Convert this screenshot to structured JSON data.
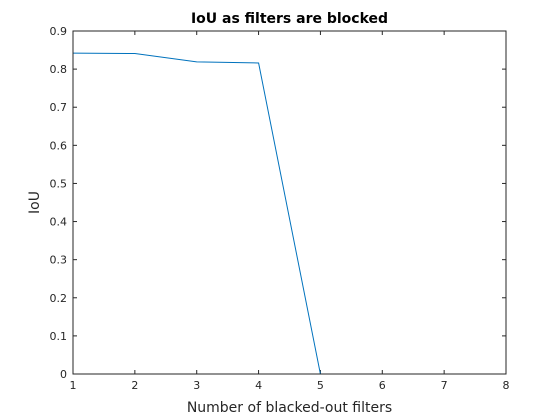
{
  "chart_data": {
    "type": "line",
    "title": "IoU as filters are blocked",
    "xlabel": "Number of blacked-out filters",
    "ylabel": "IoU",
    "xlim": [
      1,
      8
    ],
    "ylim": [
      0,
      0.9
    ],
    "xticks": [
      1,
      2,
      3,
      4,
      5,
      6,
      7,
      8
    ],
    "yticks": [
      0,
      0.1,
      0.2,
      0.3,
      0.4,
      0.5,
      0.6,
      0.7,
      0.8,
      0.9
    ],
    "grid": false,
    "box": true,
    "series": [
      {
        "color": "#0072bd",
        "x": [
          1,
          2,
          3,
          4,
          5,
          6,
          7,
          8
        ],
        "y": [
          0.842,
          0.841,
          0.819,
          0.816,
          0,
          0,
          0,
          0
        ]
      }
    ]
  }
}
